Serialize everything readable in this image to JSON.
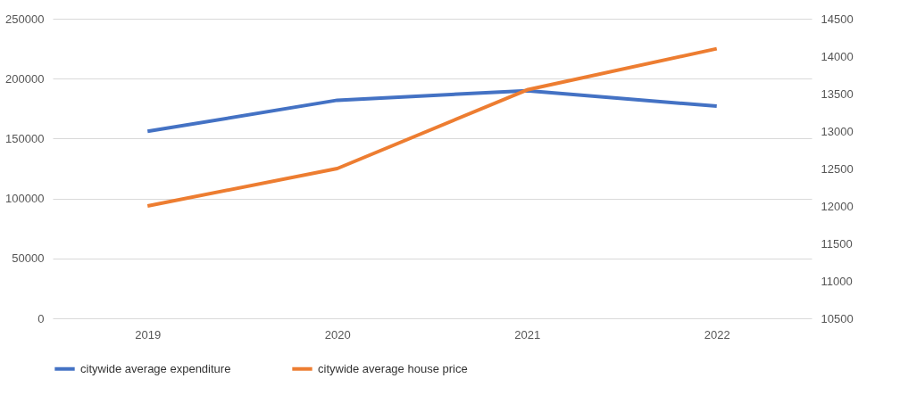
{
  "chart_data": {
    "type": "line",
    "categories": [
      "2019",
      "2020",
      "2021",
      "2022"
    ],
    "series": [
      {
        "name": "citywide average expenditure",
        "color": "#4472c4",
        "values": [
          156000,
          182000,
          190000,
          177000
        ]
      },
      {
        "name": "citywide average house price",
        "color": "#ed7d31",
        "axis": "y2",
        "values": [
          12000,
          12500,
          13550,
          14100
        ]
      }
    ],
    "ylim": [
      0,
      250000
    ],
    "yticks": [
      0,
      50000,
      100000,
      150000,
      200000,
      250000
    ],
    "y2lim": [
      10500,
      14500
    ],
    "y2ticks": [
      10500,
      11000,
      11500,
      12000,
      12500,
      13000,
      13500,
      14000,
      14500
    ],
    "grid": "y",
    "legend": "bottom",
    "marker": "none",
    "line_style": "solid"
  }
}
